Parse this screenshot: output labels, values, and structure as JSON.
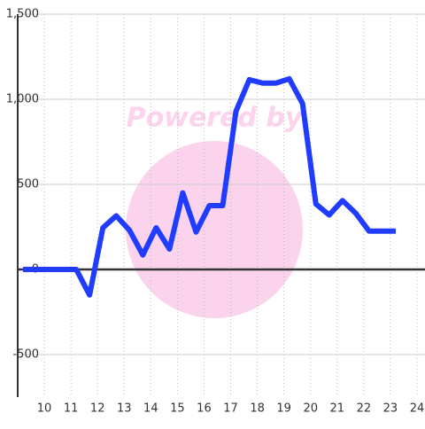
{
  "chart_data": {
    "type": "line",
    "watermark": "Powered by",
    "x": [
      9.2,
      9.7,
      10.2,
      10.7,
      11.2,
      11.7,
      12.2,
      12.7,
      13.2,
      13.7,
      14.2,
      14.7,
      15.2,
      15.7,
      16.2,
      16.7,
      17.2,
      17.7,
      18.2,
      18.7,
      19.2,
      19.7,
      20.2,
      20.7,
      21.2,
      21.7,
      22.2,
      22.7,
      23.2
    ],
    "series": [
      {
        "color": "#1f3cff",
        "values": [
          0,
          0,
          0,
          0,
          0,
          -150,
          245,
          315,
          230,
          85,
          245,
          120,
          450,
          220,
          375,
          375,
          930,
          1115,
          1095,
          1095,
          1120,
          975,
          385,
          320,
          405,
          330,
          225,
          225,
          225
        ]
      }
    ],
    "xlim": [
      9,
      24.3
    ],
    "xticks": [
      10,
      11,
      12,
      13,
      14,
      15,
      16,
      17,
      18,
      19,
      20,
      21,
      22,
      23,
      24
    ],
    "ylim": [
      -750,
      1500
    ],
    "yticks": [
      -500,
      0,
      500,
      {
        "value": 1000,
        "label": "1,000"
      },
      {
        "value": 1500,
        "label": "1,500"
      }
    ],
    "grid": true
  }
}
